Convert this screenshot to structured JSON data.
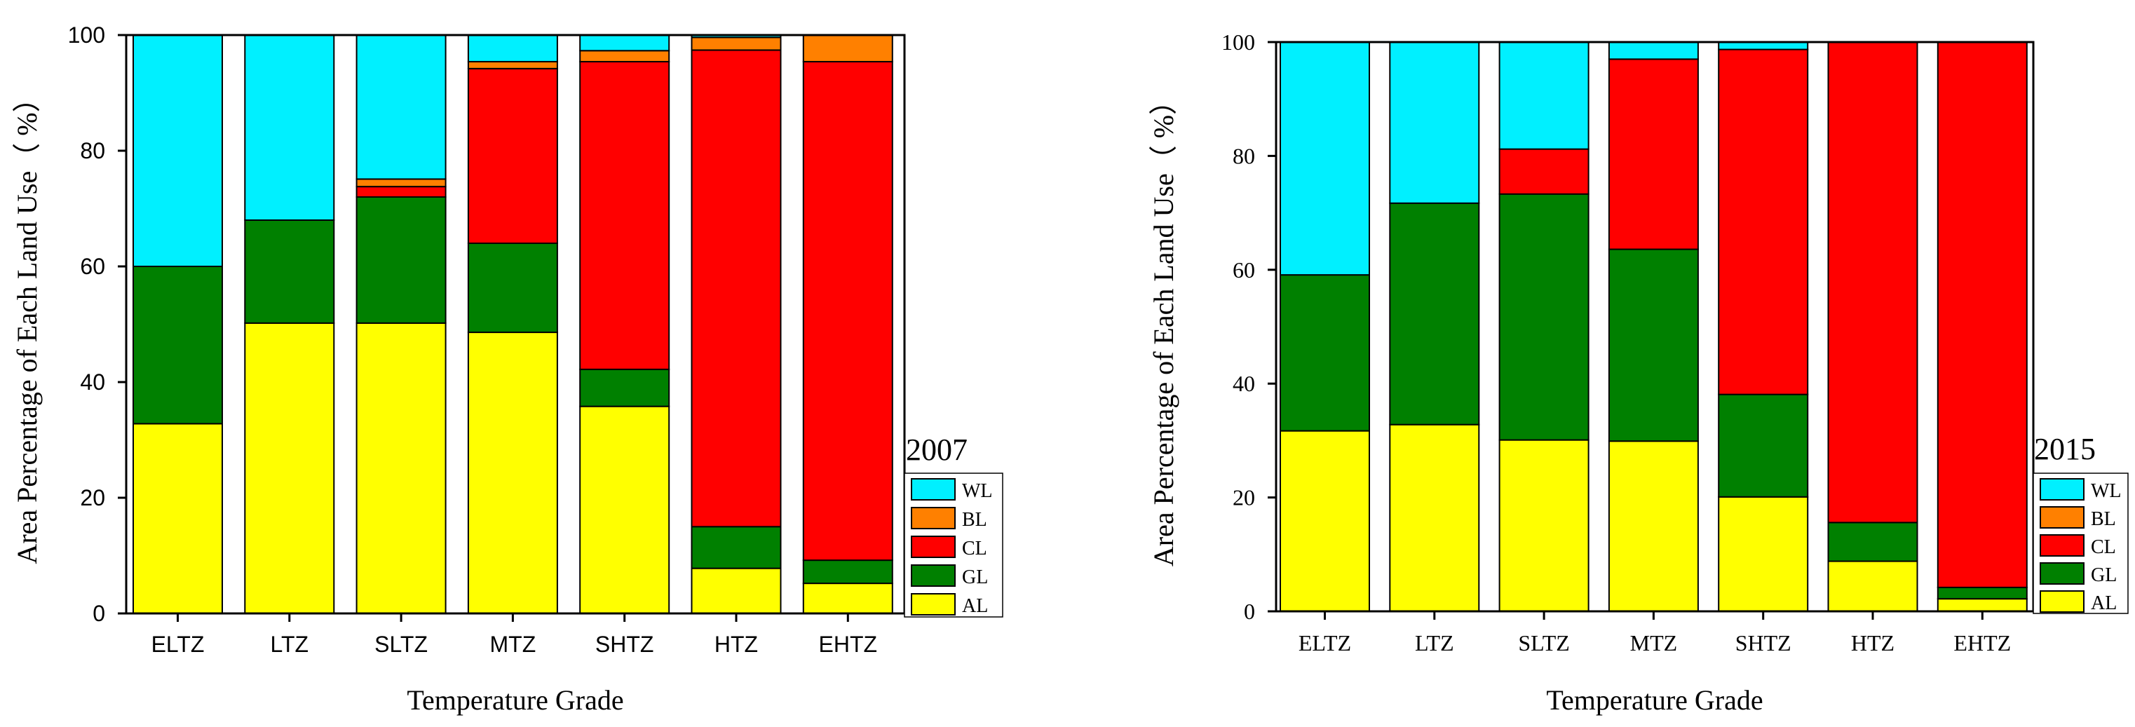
{
  "colors": {
    "WL": "#00f0ff",
    "BL": "#ff8000",
    "CL": "#ff0000",
    "GL": "#008000",
    "AL": "#ffff00"
  },
  "chart_data": [
    {
      "type": "stacked-bar",
      "year_label": "2007",
      "ylabel": "Area Percentage of Each Land Use（ %）",
      "xlabel": "Temperature Grade",
      "ylim": [
        0,
        100
      ],
      "yticks": [
        "0",
        "20",
        "40",
        "60",
        "80",
        "100"
      ],
      "categories": [
        "ELTZ",
        "LTZ",
        "SLTZ",
        "MTZ",
        "SHTZ",
        "HTZ",
        "EHTZ"
      ],
      "legend": [
        "WL",
        "BL",
        "CL",
        "GL",
        "AL"
      ],
      "series": [
        {
          "name": "AL",
          "values": [
            32.8,
            50.2,
            50.2,
            48.6,
            35.8,
            7.8,
            5.2
          ]
        },
        {
          "name": "GL",
          "values": [
            27.2,
            17.8,
            21.8,
            15.4,
            6.4,
            7.2,
            4.0
          ]
        },
        {
          "name": "CL",
          "values": [
            0,
            0,
            1.8,
            30.2,
            53.2,
            82.4,
            86.2
          ]
        },
        {
          "name": "BL",
          "values": [
            0,
            0,
            1.3,
            1.2,
            1.9,
            2.2,
            4.6
          ]
        },
        {
          "name": "WL",
          "values": [
            40.0,
            32.0,
            24.9,
            4.6,
            2.7,
            0.4,
            0
          ]
        }
      ]
    },
    {
      "type": "stacked-bar",
      "year_label": "2015",
      "ylabel": "Area Percentage of Each Land Use（ %）",
      "xlabel": "Temperature Grade",
      "ylim": [
        0,
        100
      ],
      "yticks": [
        "0",
        "20",
        "40",
        "60",
        "80",
        "100"
      ],
      "categories": [
        "ELTZ",
        "LTZ",
        "SLTZ",
        "MTZ",
        "SHTZ",
        "HTZ",
        "EHTZ"
      ],
      "legend": [
        "WL",
        "BL",
        "CL",
        "GL",
        "AL"
      ],
      "series": [
        {
          "name": "AL",
          "values": [
            31.7,
            32.8,
            30.1,
            29.9,
            20.1,
            8.8,
            2.2
          ]
        },
        {
          "name": "GL",
          "values": [
            27.4,
            38.9,
            43.2,
            33.7,
            18.0,
            6.8,
            2.0
          ]
        },
        {
          "name": "CL",
          "values": [
            0,
            0,
            7.9,
            33.4,
            60.6,
            84.4,
            95.8
          ]
        },
        {
          "name": "BL",
          "values": [
            0,
            0,
            0,
            0,
            0,
            0,
            0
          ]
        },
        {
          "name": "WL",
          "values": [
            40.9,
            28.3,
            18.8,
            3.0,
            1.3,
            0,
            0
          ]
        }
      ]
    }
  ]
}
